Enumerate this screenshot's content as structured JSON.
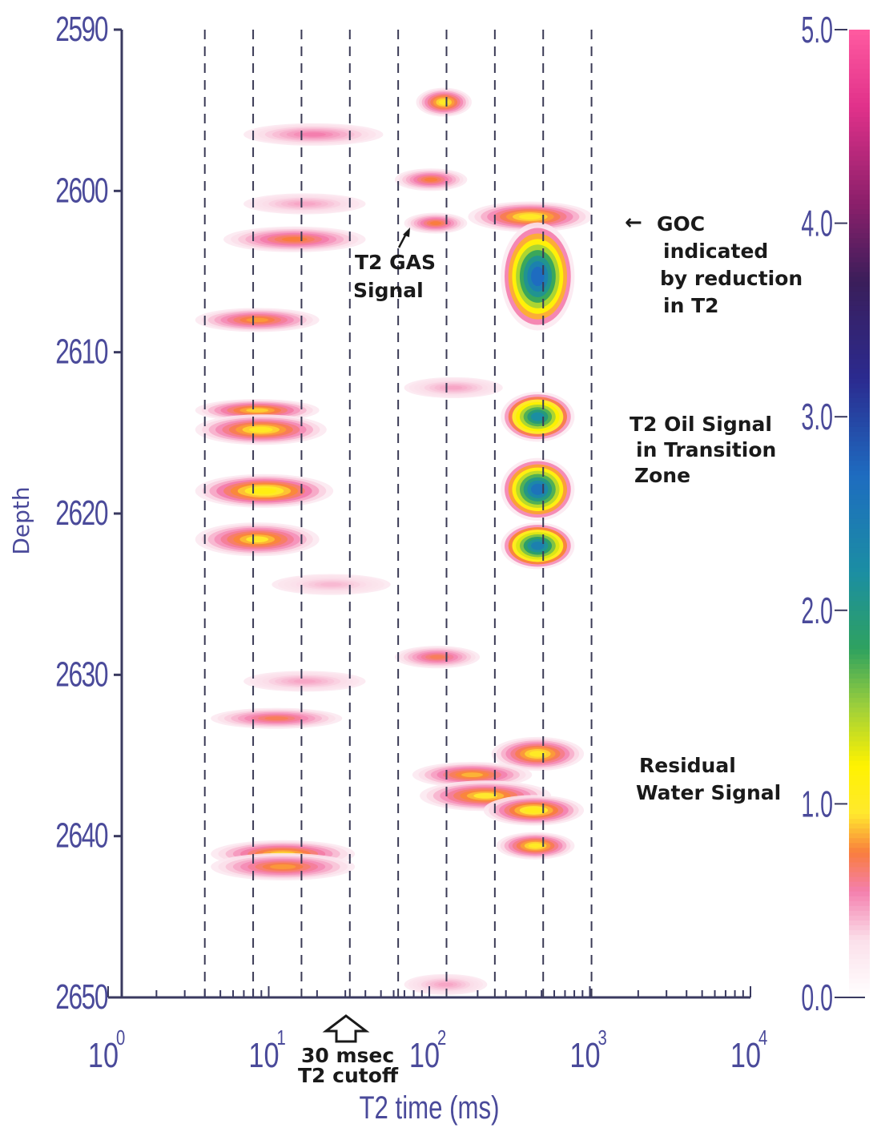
{
  "chart_data": {
    "type": "heatmap",
    "title": "",
    "xlabel": "T2 time (ms)",
    "ylabel": "Depth",
    "x_scale": "log",
    "xlim": [
      1,
      10000
    ],
    "ylim": [
      2650,
      2590
    ],
    "y_ticks": [
      "2590",
      "2600",
      "2610",
      "2620",
      "2630",
      "2640",
      "2650"
    ],
    "y_tick_values": [
      2590,
      2600,
      2610,
      2620,
      2630,
      2640,
      2650
    ],
    "x_ticks": [
      {
        "base": "10",
        "exp": "0",
        "value": 1
      },
      {
        "base": "10",
        "exp": "1",
        "value": 10
      },
      {
        "base": "10",
        "exp": "2",
        "value": 100
      },
      {
        "base": "10",
        "exp": "3",
        "value": 1000
      },
      {
        "base": "10",
        "exp": "4",
        "value": 10000
      }
    ],
    "bin_T2_ms": [
      4,
      8,
      16,
      32,
      64,
      128,
      256,
      512,
      1024
    ],
    "colorbar": {
      "min": 0.0,
      "max": 5.0,
      "ticks": [
        "0.0",
        "1.0",
        "2.0",
        "3.0",
        "4.0",
        "5.0"
      ],
      "tick_values": [
        0,
        1,
        2,
        3,
        4,
        5
      ],
      "stops": [
        {
          "v": 0.0,
          "color": "#ffffff"
        },
        {
          "v": 0.3,
          "color": "#fbe0ea"
        },
        {
          "v": 0.55,
          "color": "#f47fae"
        },
        {
          "v": 0.75,
          "color": "#f97d3e"
        },
        {
          "v": 0.95,
          "color": "#ffe82e"
        },
        {
          "v": 1.2,
          "color": "#fff200"
        },
        {
          "v": 1.5,
          "color": "#9fd03a"
        },
        {
          "v": 1.8,
          "color": "#2fa25f"
        },
        {
          "v": 2.2,
          "color": "#1b8ea3"
        },
        {
          "v": 2.7,
          "color": "#1e6cc0"
        },
        {
          "v": 3.2,
          "color": "#2b2a8f"
        },
        {
          "v": 3.7,
          "color": "#3a1e5a"
        },
        {
          "v": 4.1,
          "color": "#8a1f6a"
        },
        {
          "v": 4.6,
          "color": "#e0318a"
        },
        {
          "v": 5.0,
          "color": "#ff5aa0"
        }
      ]
    },
    "blobs": [
      {
        "t2_lo": 95,
        "t2_hi": 160,
        "depth": 2594.5,
        "half_thick": 0.55,
        "peak": 1.0
      },
      {
        "t2_lo": 8,
        "t2_hi": 45,
        "depth": 2596.5,
        "half_thick": 0.35,
        "peak": 0.55
      },
      {
        "t2_lo": 70,
        "t2_hi": 150,
        "depth": 2599.3,
        "half_thick": 0.35,
        "peak": 0.75
      },
      {
        "t2_lo": 8,
        "t2_hi": 35,
        "depth": 2600.8,
        "half_thick": 0.3,
        "peak": 0.45
      },
      {
        "t2_lo": 6,
        "t2_hi": 35,
        "depth": 2603.0,
        "half_thick": 0.45,
        "peak": 0.75
      },
      {
        "t2_lo": 80,
        "t2_hi": 150,
        "depth": 2602.0,
        "half_thick": 0.3,
        "peak": 0.75
      },
      {
        "t2_lo": 200,
        "t2_hi": 900,
        "depth": 2601.6,
        "half_thick": 0.6,
        "peak": 1.0
      },
      {
        "t2_lo": 320,
        "t2_hi": 700,
        "depth": 2605.3,
        "half_thick": 3.0,
        "peak": 2.7
      },
      {
        "t2_lo": 4,
        "t2_hi": 18,
        "depth": 2608.0,
        "half_thick": 0.4,
        "peak": 0.8
      },
      {
        "t2_lo": 80,
        "t2_hi": 250,
        "depth": 2612.2,
        "half_thick": 0.3,
        "peak": 0.45
      },
      {
        "t2_lo": 320,
        "t2_hi": 700,
        "depth": 2614.0,
        "half_thick": 1.2,
        "peak": 2.2
      },
      {
        "t2_lo": 320,
        "t2_hi": 700,
        "depth": 2618.5,
        "half_thick": 1.6,
        "peak": 2.6
      },
      {
        "t2_lo": 320,
        "t2_hi": 700,
        "depth": 2622.0,
        "half_thick": 1.1,
        "peak": 2.4
      },
      {
        "t2_lo": 4,
        "t2_hi": 18,
        "depth": 2613.6,
        "half_thick": 0.35,
        "peak": 0.9
      },
      {
        "t2_lo": 4,
        "t2_hi": 20,
        "depth": 2614.8,
        "half_thick": 0.6,
        "peak": 1.0
      },
      {
        "t2_lo": 4,
        "t2_hi": 22,
        "depth": 2618.6,
        "half_thick": 0.7,
        "peak": 1.1
      },
      {
        "t2_lo": 4,
        "t2_hi": 18,
        "depth": 2621.6,
        "half_thick": 0.7,
        "peak": 0.95
      },
      {
        "t2_lo": 12,
        "t2_hi": 50,
        "depth": 2624.4,
        "half_thick": 0.3,
        "peak": 0.4
      },
      {
        "t2_lo": 70,
        "t2_hi": 180,
        "depth": 2628.9,
        "half_thick": 0.35,
        "peak": 0.7
      },
      {
        "t2_lo": 8,
        "t2_hi": 35,
        "depth": 2630.4,
        "half_thick": 0.3,
        "peak": 0.45
      },
      {
        "t2_lo": 5,
        "t2_hi": 25,
        "depth": 2632.7,
        "half_thick": 0.3,
        "peak": 0.7
      },
      {
        "t2_lo": 280,
        "t2_hi": 800,
        "depth": 2634.9,
        "half_thick": 0.7,
        "peak": 1.0
      },
      {
        "t2_lo": 90,
        "t2_hi": 380,
        "depth": 2636.2,
        "half_thick": 0.45,
        "peak": 0.85
      },
      {
        "t2_lo": 100,
        "t2_hi": 500,
        "depth": 2637.5,
        "half_thick": 0.6,
        "peak": 0.95
      },
      {
        "t2_lo": 250,
        "t2_hi": 800,
        "depth": 2638.4,
        "half_thick": 0.6,
        "peak": 1.05
      },
      {
        "t2_lo": 300,
        "t2_hi": 700,
        "depth": 2640.6,
        "half_thick": 0.5,
        "peak": 1.0
      },
      {
        "t2_lo": 5,
        "t2_hi": 30,
        "depth": 2641.1,
        "half_thick": 0.5,
        "peak": 0.9
      },
      {
        "t2_lo": 5,
        "t2_hi": 30,
        "depth": 2641.9,
        "half_thick": 0.5,
        "peak": 0.8
      },
      {
        "t2_lo": 80,
        "t2_hi": 200,
        "depth": 2649.2,
        "half_thick": 0.3,
        "peak": 0.45
      }
    ],
    "annotations": [
      {
        "id": "goc",
        "lines": [
          "GOC",
          "indicated",
          "by reduction",
          "in T2"
        ],
        "arrow": "←"
      },
      {
        "id": "gas",
        "lines": [
          "T2  GAS",
          "Signal"
        ]
      },
      {
        "id": "oil",
        "lines": [
          "T2  Oil  Signal",
          "in  Transition",
          "Zone"
        ]
      },
      {
        "id": "water",
        "lines": [
          "Residual",
          "Water  Signal"
        ]
      },
      {
        "id": "cutoff",
        "lines": [
          "30  msec",
          "T2  cutoff"
        ]
      }
    ]
  }
}
